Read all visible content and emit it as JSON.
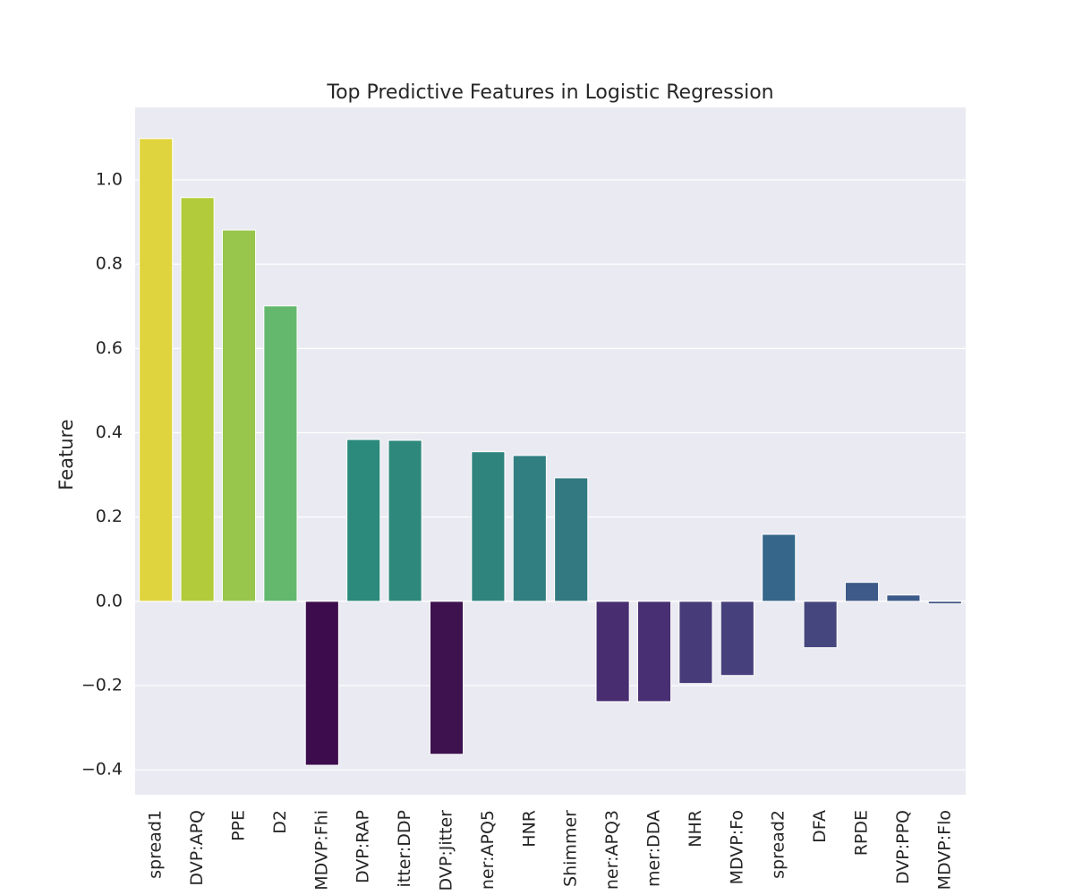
{
  "chart_data": {
    "type": "bar",
    "title": "Top Predictive Features in Logistic Regression",
    "ylabel": "Feature",
    "categories": [
      "spread1",
      "DVP:APQ",
      "PPE",
      "D2",
      "MDVP:Fhi",
      "DVP:RAP",
      "itter:DDP",
      "DVP:Jitter",
      "ner:APQ5",
      "HNR",
      "Shimmer",
      "ner:APQ3",
      "mer:DDA",
      "NHR",
      "MDVP:Fo",
      "spread2",
      "DFA",
      "RPDE",
      "DVP:PPQ",
      "MDVP:Flo"
    ],
    "values": [
      1.098,
      0.958,
      0.881,
      0.701,
      -0.389,
      0.384,
      0.382,
      -0.363,
      0.355,
      0.346,
      0.293,
      -0.238,
      -0.238,
      -0.195,
      -0.176,
      0.159,
      -0.11,
      0.045,
      0.015,
      -0.006
    ],
    "colors": [
      "#e0d43e",
      "#b2cb3a",
      "#98c54c",
      "#63b86e",
      "#3d0c4c",
      "#2b8a7c",
      "#2e887c",
      "#3e114f",
      "#2f847e",
      "#317f80",
      "#327981",
      "#482d71",
      "#482e72",
      "#483b79",
      "#46417c",
      "#36678a",
      "#46467e",
      "#3e5a88",
      "#3c5b8a",
      "#3e5585"
    ],
    "ylim": [
      -0.459,
      1.172
    ],
    "yticks": [
      {
        "value": -0.4,
        "label": "−0.4"
      },
      {
        "value": -0.2,
        "label": "−0.2"
      },
      {
        "value": 0.0,
        "label": "0.0"
      },
      {
        "value": 0.2,
        "label": "0.2"
      },
      {
        "value": 0.4,
        "label": "0.4"
      },
      {
        "value": 0.6,
        "label": "0.6"
      },
      {
        "value": 0.8,
        "label": "0.8"
      },
      {
        "value": 1.0,
        "label": "1.0"
      }
    ],
    "grid": true
  }
}
